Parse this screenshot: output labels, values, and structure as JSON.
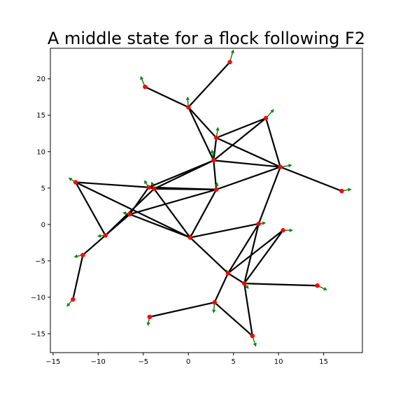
{
  "chart_data": {
    "type": "scatter",
    "title": "A middle state for a flock following F2",
    "xlabel": "",
    "ylabel": "",
    "xlim": [
      -15.3,
      19.3
    ],
    "ylim": [
      -17.6,
      24.2
    ],
    "xticks": [
      -15,
      -10,
      -5,
      0,
      5,
      10,
      15
    ],
    "yticks": [
      -15,
      -10,
      -5,
      0,
      5,
      10,
      15,
      20
    ],
    "grid": false,
    "legend": "none",
    "colors": {
      "node": "#ff0000",
      "edge": "#000000",
      "arrow": "#008000"
    },
    "nodes": [
      {
        "id": 0,
        "x": 4.6,
        "y": 22.3,
        "dx": 0.4,
        "dy": 1.4
      },
      {
        "id": 1,
        "x": -4.8,
        "y": 18.9,
        "dx": -0.5,
        "dy": 1.2
      },
      {
        "id": 2,
        "x": 0.0,
        "y": 16.1,
        "dx": -0.1,
        "dy": 1.2
      },
      {
        "id": 3,
        "x": 8.6,
        "y": 14.6,
        "dx": 0.9,
        "dy": 1.0
      },
      {
        "id": 4,
        "x": 3.1,
        "y": 11.9,
        "dx": 0.2,
        "dy": 1.2
      },
      {
        "id": 5,
        "x": 2.8,
        "y": 8.8,
        "dx": -0.2,
        "dy": 1.2
      },
      {
        "id": 6,
        "x": 10.2,
        "y": 7.9,
        "dx": 1.3,
        "dy": 0.2
      },
      {
        "id": 7,
        "x": -12.5,
        "y": 5.8,
        "dx": -0.8,
        "dy": 0.5
      },
      {
        "id": 8,
        "x": -4.4,
        "y": 5.1,
        "dx": -0.5,
        "dy": 0.8
      },
      {
        "id": 9,
        "x": -3.8,
        "y": 4.9,
        "dx": -0.3,
        "dy": 0.8
      },
      {
        "id": 10,
        "x": 3.1,
        "y": 4.8,
        "dx": 0.1,
        "dy": 0.8
      },
      {
        "id": 11,
        "x": 17.0,
        "y": 4.6,
        "dx": 1.1,
        "dy": 0.2
      },
      {
        "id": 12,
        "x": -6.5,
        "y": 1.4,
        "dx": -0.8,
        "dy": 0.2
      },
      {
        "id": 13,
        "x": 7.8,
        "y": 0.1,
        "dx": 0.8,
        "dy": 0.1
      },
      {
        "id": 14,
        "x": 10.5,
        "y": -0.8,
        "dx": 1.1,
        "dy": 0.0
      },
      {
        "id": 15,
        "x": -9.2,
        "y": -1.5,
        "dx": -0.9,
        "dy": -0.1
      },
      {
        "id": 16,
        "x": 0.2,
        "y": -1.8,
        "dx": 0.0,
        "dy": 0.4
      },
      {
        "id": 17,
        "x": -11.7,
        "y": -4.2,
        "dx": -1.0,
        "dy": -0.2
      },
      {
        "id": 18,
        "x": 4.4,
        "y": -6.7,
        "dx": -0.2,
        "dy": 0.4
      },
      {
        "id": 19,
        "x": 6.2,
        "y": -8.1,
        "dx": 0.5,
        "dy": -0.6
      },
      {
        "id": 20,
        "x": 14.3,
        "y": -8.4,
        "dx": 1.1,
        "dy": -0.5
      },
      {
        "id": 21,
        "x": -12.8,
        "y": -10.3,
        "dx": -0.7,
        "dy": -0.8
      },
      {
        "id": 22,
        "x": 2.9,
        "y": -10.7,
        "dx": -0.1,
        "dy": -1.2
      },
      {
        "id": 23,
        "x": -4.3,
        "y": -12.7,
        "dx": -0.2,
        "dy": -1.0
      },
      {
        "id": 24,
        "x": 7.1,
        "y": -15.3,
        "dx": 0.4,
        "dy": -1.2
      }
    ],
    "edges": [
      [
        0,
        2
      ],
      [
        1,
        2
      ],
      [
        2,
        4
      ],
      [
        2,
        5
      ],
      [
        3,
        4
      ],
      [
        3,
        5
      ],
      [
        3,
        6
      ],
      [
        4,
        5
      ],
      [
        4,
        6
      ],
      [
        5,
        6
      ],
      [
        5,
        8
      ],
      [
        5,
        9
      ],
      [
        5,
        10
      ],
      [
        6,
        10
      ],
      [
        6,
        11
      ],
      [
        6,
        13
      ],
      [
        7,
        8
      ],
      [
        7,
        15
      ],
      [
        7,
        16
      ],
      [
        8,
        9
      ],
      [
        8,
        10
      ],
      [
        8,
        12
      ],
      [
        9,
        10
      ],
      [
        9,
        15
      ],
      [
        9,
        16
      ],
      [
        10,
        12
      ],
      [
        10,
        16
      ],
      [
        12,
        16
      ],
      [
        12,
        15
      ],
      [
        15,
        17
      ],
      [
        17,
        21
      ],
      [
        13,
        16
      ],
      [
        13,
        18
      ],
      [
        13,
        19
      ],
      [
        14,
        18
      ],
      [
        14,
        19
      ],
      [
        16,
        18
      ],
      [
        18,
        19
      ],
      [
        18,
        22
      ],
      [
        19,
        20
      ],
      [
        19,
        24
      ],
      [
        22,
        23
      ],
      [
        22,
        24
      ]
    ]
  }
}
